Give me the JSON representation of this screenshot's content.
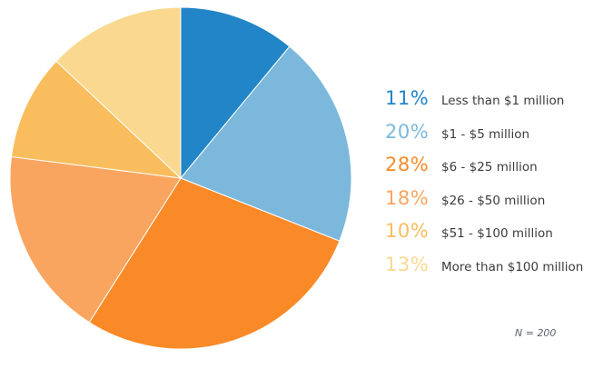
{
  "chart_data": {
    "type": "pie",
    "title": "",
    "start_angle_deg": 0,
    "direction": "clockwise",
    "legend_position": "right",
    "note": "N = 200",
    "slices": [
      {
        "label": "Less than $1 million",
        "value": 11,
        "pct_label": "11%",
        "color": "#2185c8"
      },
      {
        "label": "$1 - $5 million",
        "value": 20,
        "pct_label": "20%",
        "color": "#7bb8dc"
      },
      {
        "label": "$6 - $25 million",
        "value": 28,
        "pct_label": "28%",
        "color": "#fa8a28"
      },
      {
        "label": "$26 - $50 million",
        "value": 18,
        "pct_label": "18%",
        "color": "#f9a55f"
      },
      {
        "label": "$51 - $100 million",
        "value": 10,
        "pct_label": "10%",
        "color": "#fabd5d"
      },
      {
        "label": "More than $100 million",
        "value": 13,
        "pct_label": "13%",
        "color": "#fad88f"
      }
    ]
  }
}
